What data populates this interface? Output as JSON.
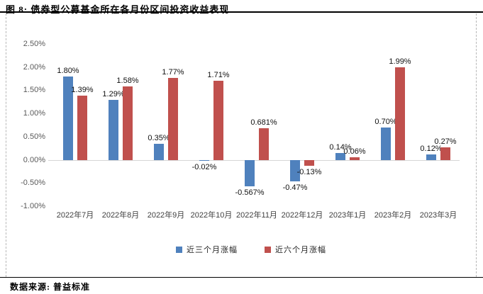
{
  "title": "图 8: 债券型公募基金所在各月份区间投资收益表现",
  "source_note": "数据来源: 普益标准",
  "colors": {
    "series_3m_blue": "#4F81BD",
    "series_6m_red": "#C0504D",
    "zero_axis_line": "#D6D6D6",
    "frame_dashed_border": "#B7B7B7",
    "divider_line": "#000000"
  },
  "chart_data": {
    "type": "bar",
    "title": "",
    "categories": [
      "2022年7月",
      "2022年8月",
      "2022年9月",
      "2022年10月",
      "2022年11月",
      "2022年12月",
      "2023年1月",
      "2023年2月",
      "2023年3月"
    ],
    "series": [
      {
        "name": "近三个月涨幅",
        "color": "#4F81BD",
        "values": [
          1.8,
          1.29,
          0.35,
          -0.02,
          -0.567,
          -0.47,
          0.14,
          0.7,
          0.12
        ],
        "labels": [
          "1.80%",
          "1.29%",
          "0.35%",
          "-0.02%",
          "-0.567%",
          "-0.47%",
          "0.14%",
          "0.70%",
          "0.12%"
        ]
      },
      {
        "name": "近六个月涨幅",
        "color": "#C0504D",
        "values": [
          1.39,
          1.58,
          1.77,
          1.71,
          0.681,
          -0.13,
          0.06,
          1.99,
          0.27
        ],
        "labels": [
          "1.39%",
          "1.58%",
          "1.77%",
          "1.71%",
          "0.681%",
          "-0.13%",
          "0.06%",
          "1.99%",
          "0.27%"
        ]
      }
    ],
    "xlabel": "",
    "ylabel": "",
    "ylim": [
      -1.0,
      2.5
    ],
    "ytick_step": 0.5,
    "ytick_labels": [
      "2.50%",
      "2.00%",
      "1.50%",
      "1.00%",
      "0.50%",
      "0.00%",
      "-0.50%",
      "-1.00%"
    ],
    "grid": false,
    "legend_position": "bottom"
  }
}
